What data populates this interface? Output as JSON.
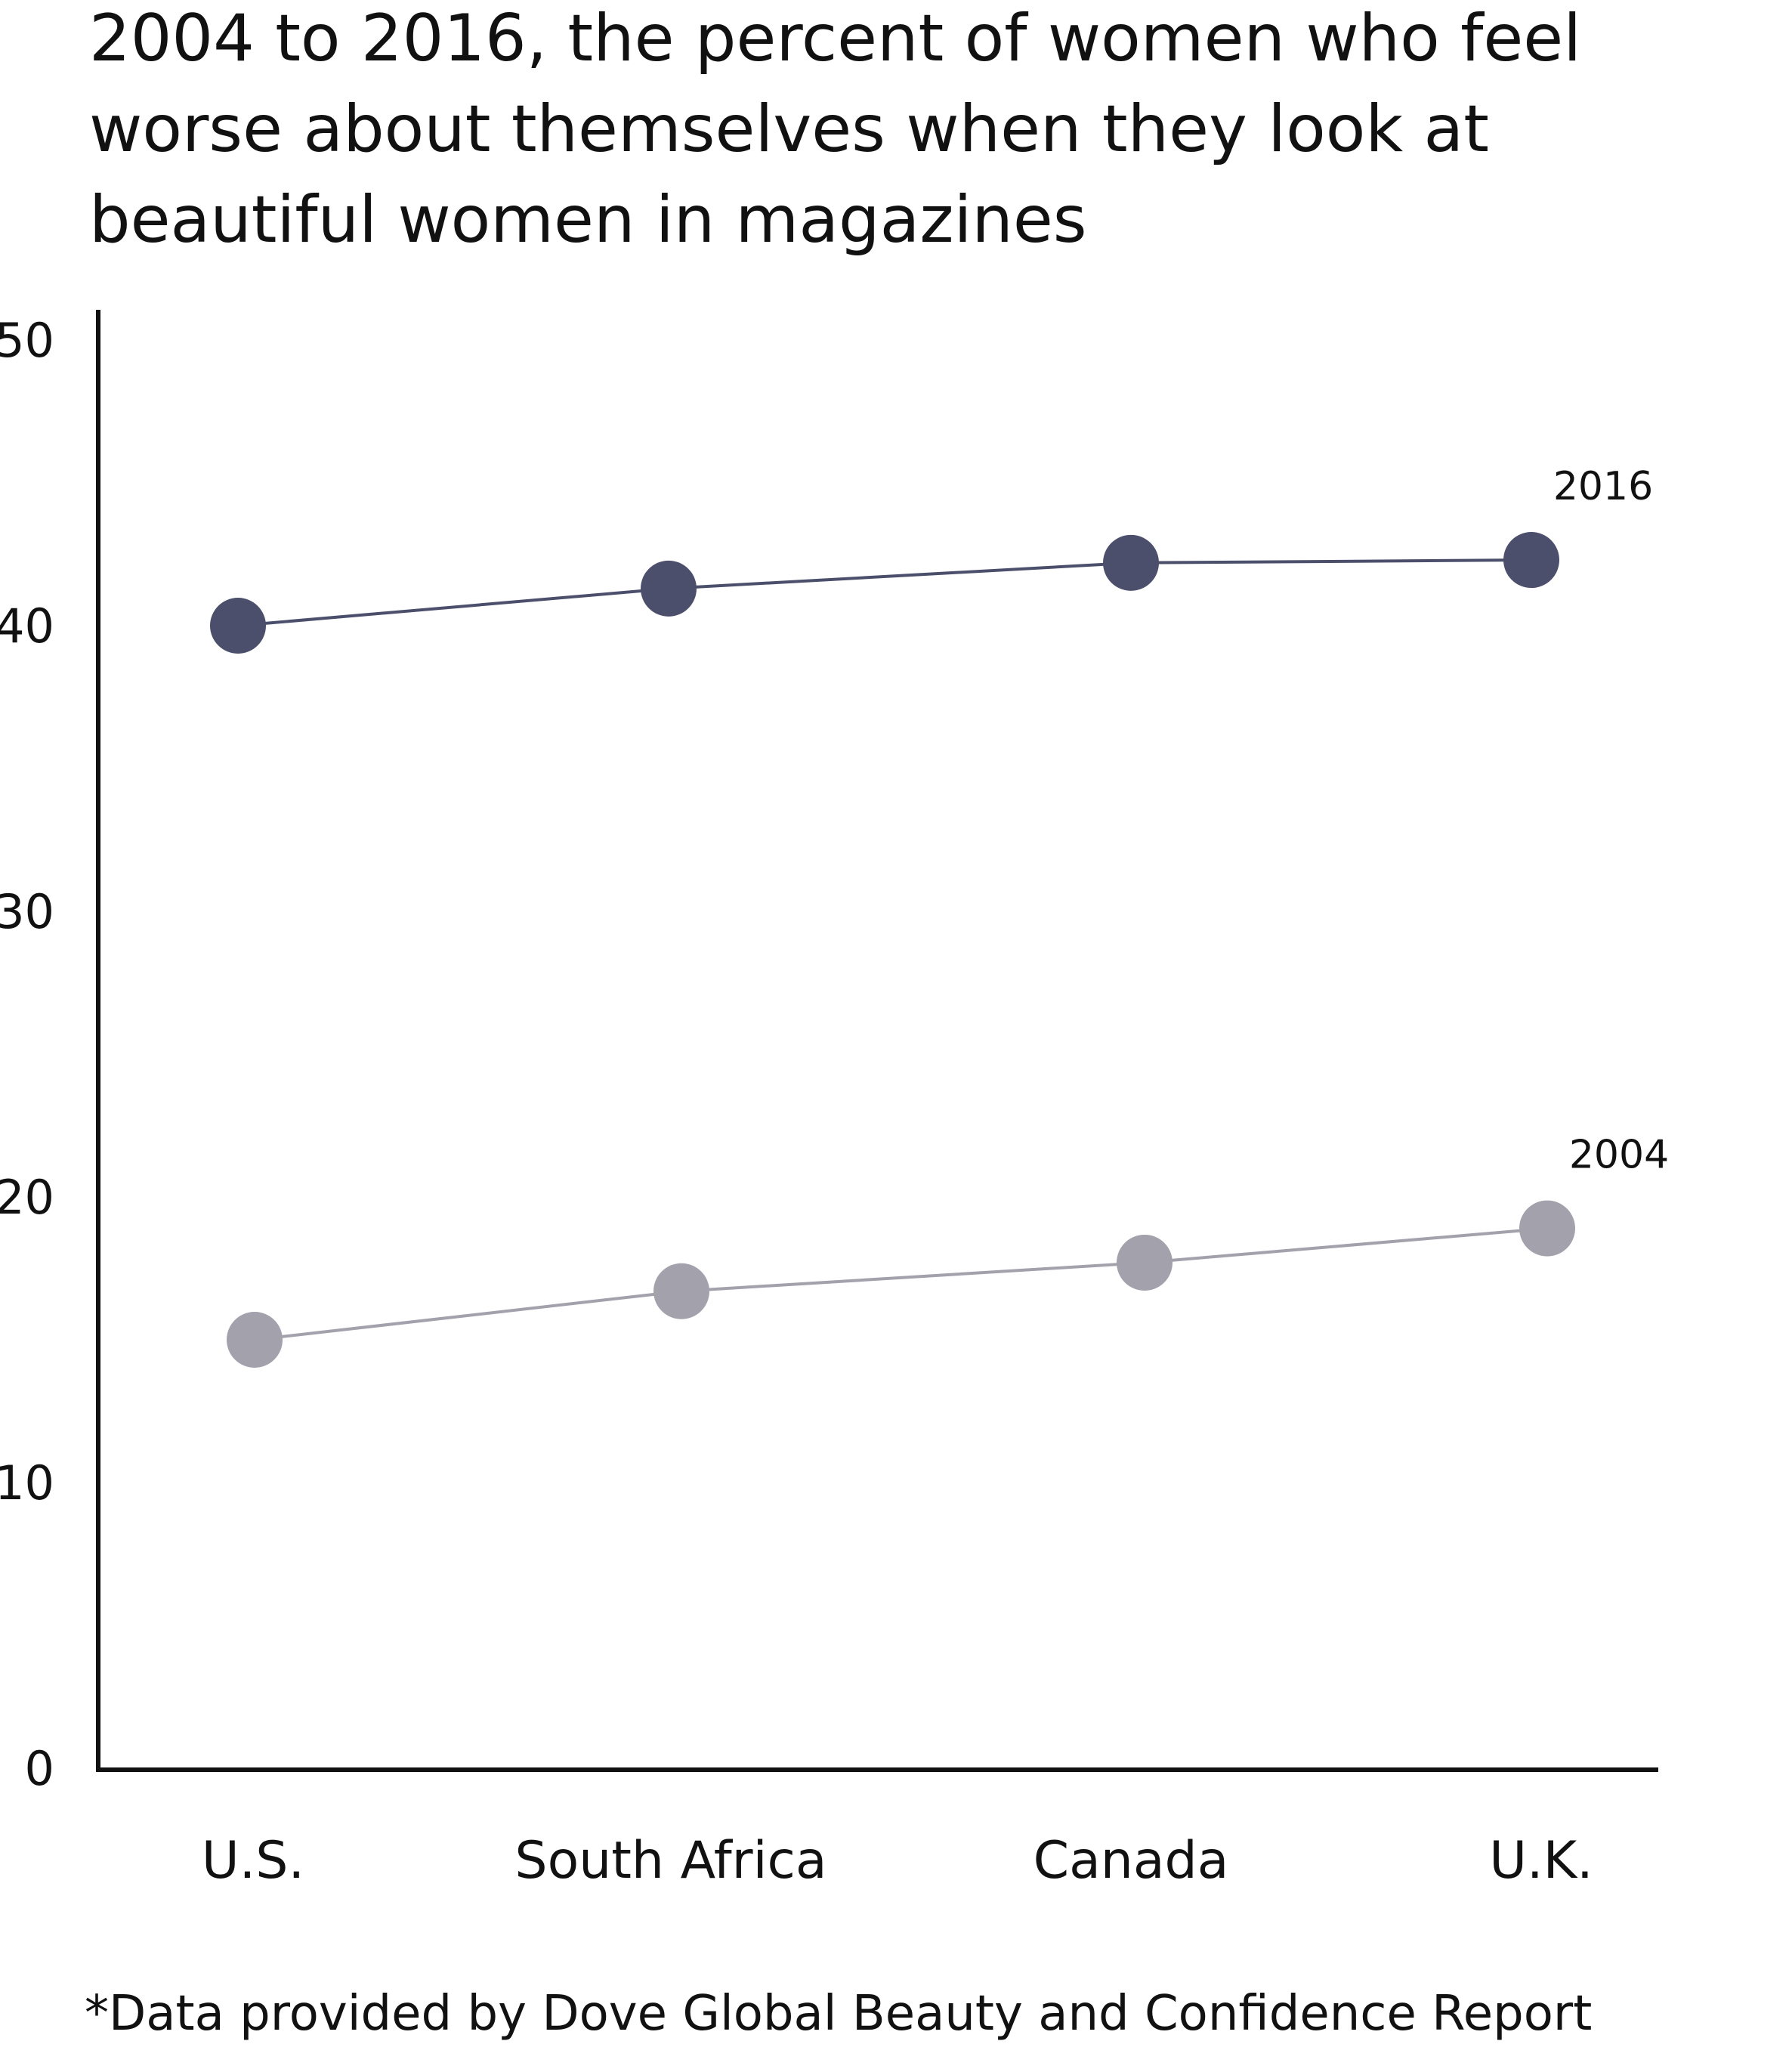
{
  "chart_data": {
    "type": "line",
    "title_lines": [
      "2004 to 2016, the percent of women who feel",
      "worse about themselves when they look at",
      "beautiful women in magazines"
    ],
    "xlabel": "",
    "ylabel": "",
    "categories": [
      "U.S.",
      "South Africa",
      "Canada",
      "U.K."
    ],
    "ylim": [
      0,
      50
    ],
    "yticks": [
      0,
      10,
      20,
      30,
      40,
      50
    ],
    "grid": false,
    "legend": "inline labels at right end of each line",
    "series": [
      {
        "name": "2016",
        "values": [
          40,
          41.3,
          42.2,
          42.3
        ],
        "color": "#4b4f6b"
      },
      {
        "name": "2004",
        "values": [
          15,
          16.7,
          17.7,
          18.9
        ],
        "color": "#a2a1ac"
      }
    ],
    "footnote": "*Data provided by Dove Global Beauty and Confidence Report"
  }
}
